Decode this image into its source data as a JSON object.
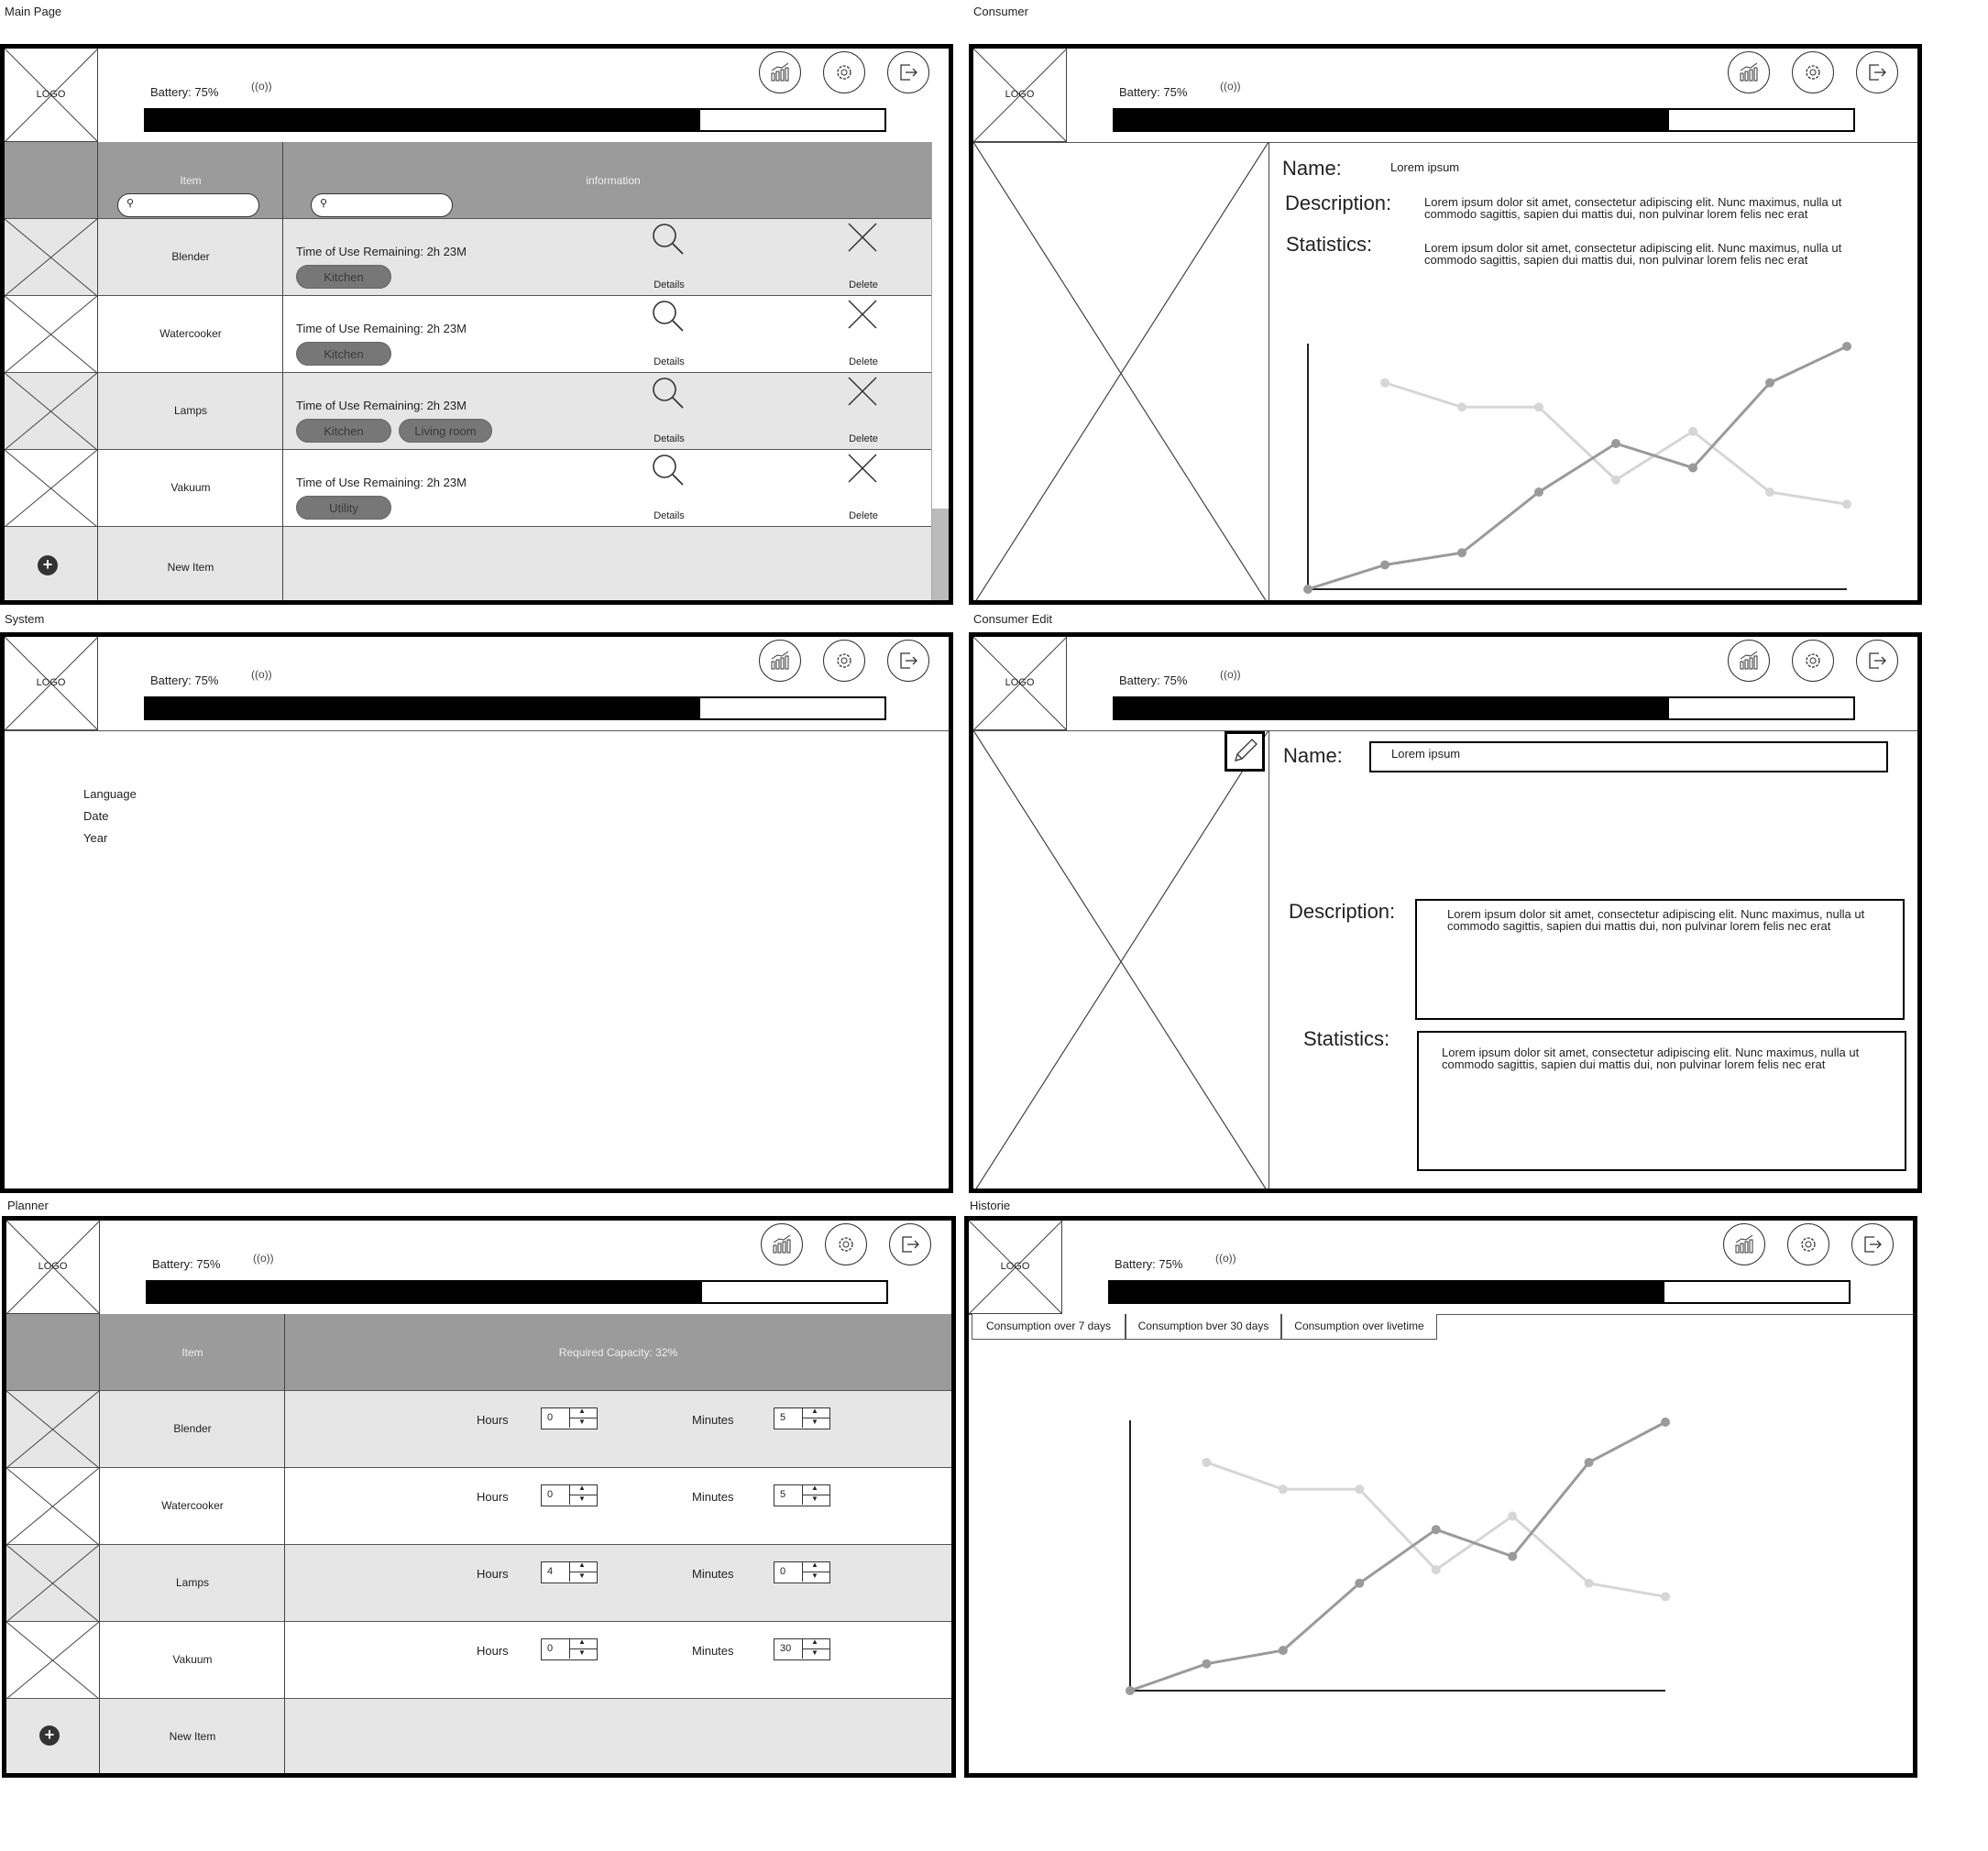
{
  "labels": {
    "main": "Main Page",
    "consumer": "Consumer",
    "system": "System",
    "consumer_edit": "Consumer Edit",
    "planner": "Planner",
    "historie": "Historie"
  },
  "header": {
    "logo": "LOGO",
    "battery": "Battery: 75%",
    "battery_level": 0.75,
    "wifi": "((o))"
  },
  "main": {
    "col_item": "Item",
    "col_info": "information",
    "rows": [
      {
        "name": "Blender",
        "time": "Time of Use Remaining: 2h 23M",
        "tags": [
          "Kitchen"
        ],
        "details": "Details",
        "delete": "Delete"
      },
      {
        "name": "Watercooker",
        "time": "Time of Use Remaining: 2h 23M",
        "tags": [
          "Kitchen"
        ],
        "details": "Details",
        "delete": "Delete"
      },
      {
        "name": "Lamps",
        "time": "Time of Use Remaining: 2h 23M",
        "tags": [
          "Kitchen",
          "Living room"
        ],
        "details": "Details",
        "delete": "Delete"
      },
      {
        "name": "Vakuum",
        "time": "Time of Use Remaining: 2h 23M",
        "tags": [
          "Utility"
        ],
        "details": "Details",
        "delete": "Delete"
      }
    ],
    "new_item": "New Item"
  },
  "consumer": {
    "name_label": "Name:",
    "name_value": "Lorem ipsum",
    "desc_label": "Description:",
    "desc_value": "Lorem ipsum dolor sit amet, consectetur adipiscing elit. Nunc maximus, nulla ut commodo sagittis, sapien dui mattis dui, non pulvinar lorem felis nec erat",
    "stats_label": "Statistics:",
    "stats_value": "Lorem ipsum dolor sit amet, consectetur adipiscing elit. Nunc maximus, nulla ut commodo sagittis, sapien dui mattis dui, non pulvinar lorem felis nec erat"
  },
  "system": {
    "items": [
      "Language",
      "Date",
      "Year"
    ]
  },
  "consumer_edit": {
    "name_label": "Name:",
    "name_value": "Lorem ipsum",
    "desc_label": "Description:",
    "desc_value": "Lorem ipsum dolor sit amet, consectetur adipiscing elit. Nunc maximus, nulla ut commodo sagittis, sapien dui mattis dui, non pulvinar lorem felis nec erat",
    "stats_label": "Statistics:",
    "stats_value": "Lorem ipsum dolor sit amet, consectetur adipiscing elit. Nunc maximus, nulla ut commodo sagittis, sapien dui mattis dui, non pulvinar lorem felis nec erat"
  },
  "planner": {
    "col_item": "Item",
    "col_capacity": "Required Capacity: 32%",
    "hours_label": "Hours",
    "minutes_label": "Minutes",
    "rows": [
      {
        "name": "Blender",
        "hours": "0",
        "minutes": "5"
      },
      {
        "name": "Watercooker",
        "hours": "0",
        "minutes": "5"
      },
      {
        "name": "Lamps",
        "hours": "4",
        "minutes": "0"
      },
      {
        "name": "Vakuum",
        "hours": "0",
        "minutes": "30"
      }
    ],
    "new_item": "New Item"
  },
  "historie": {
    "tabs": [
      "Consumption over 7 days",
      "Consumption bver 30 days",
      "Consumption over livetime"
    ]
  },
  "colors": {
    "series_a": "#9a9a9a",
    "series_b": "#d6d6d6",
    "header_grey": "#9b9b9b",
    "row_grey": "#e6e6e6",
    "tag_grey": "#777777"
  },
  "chart_data": {
    "type": "line",
    "x": [
      0,
      1,
      2,
      3,
      4,
      5,
      6,
      7
    ],
    "series": [
      {
        "values": [
          0,
          1,
          1.5,
          4,
          6,
          5,
          8.5,
          10
        ]
      },
      {
        "values": [
          null,
          8.5,
          7.5,
          7.5,
          4.5,
          6.5,
          4,
          3.5
        ]
      }
    ],
    "ylim": [
      0,
      10
    ],
    "grid": false
  }
}
